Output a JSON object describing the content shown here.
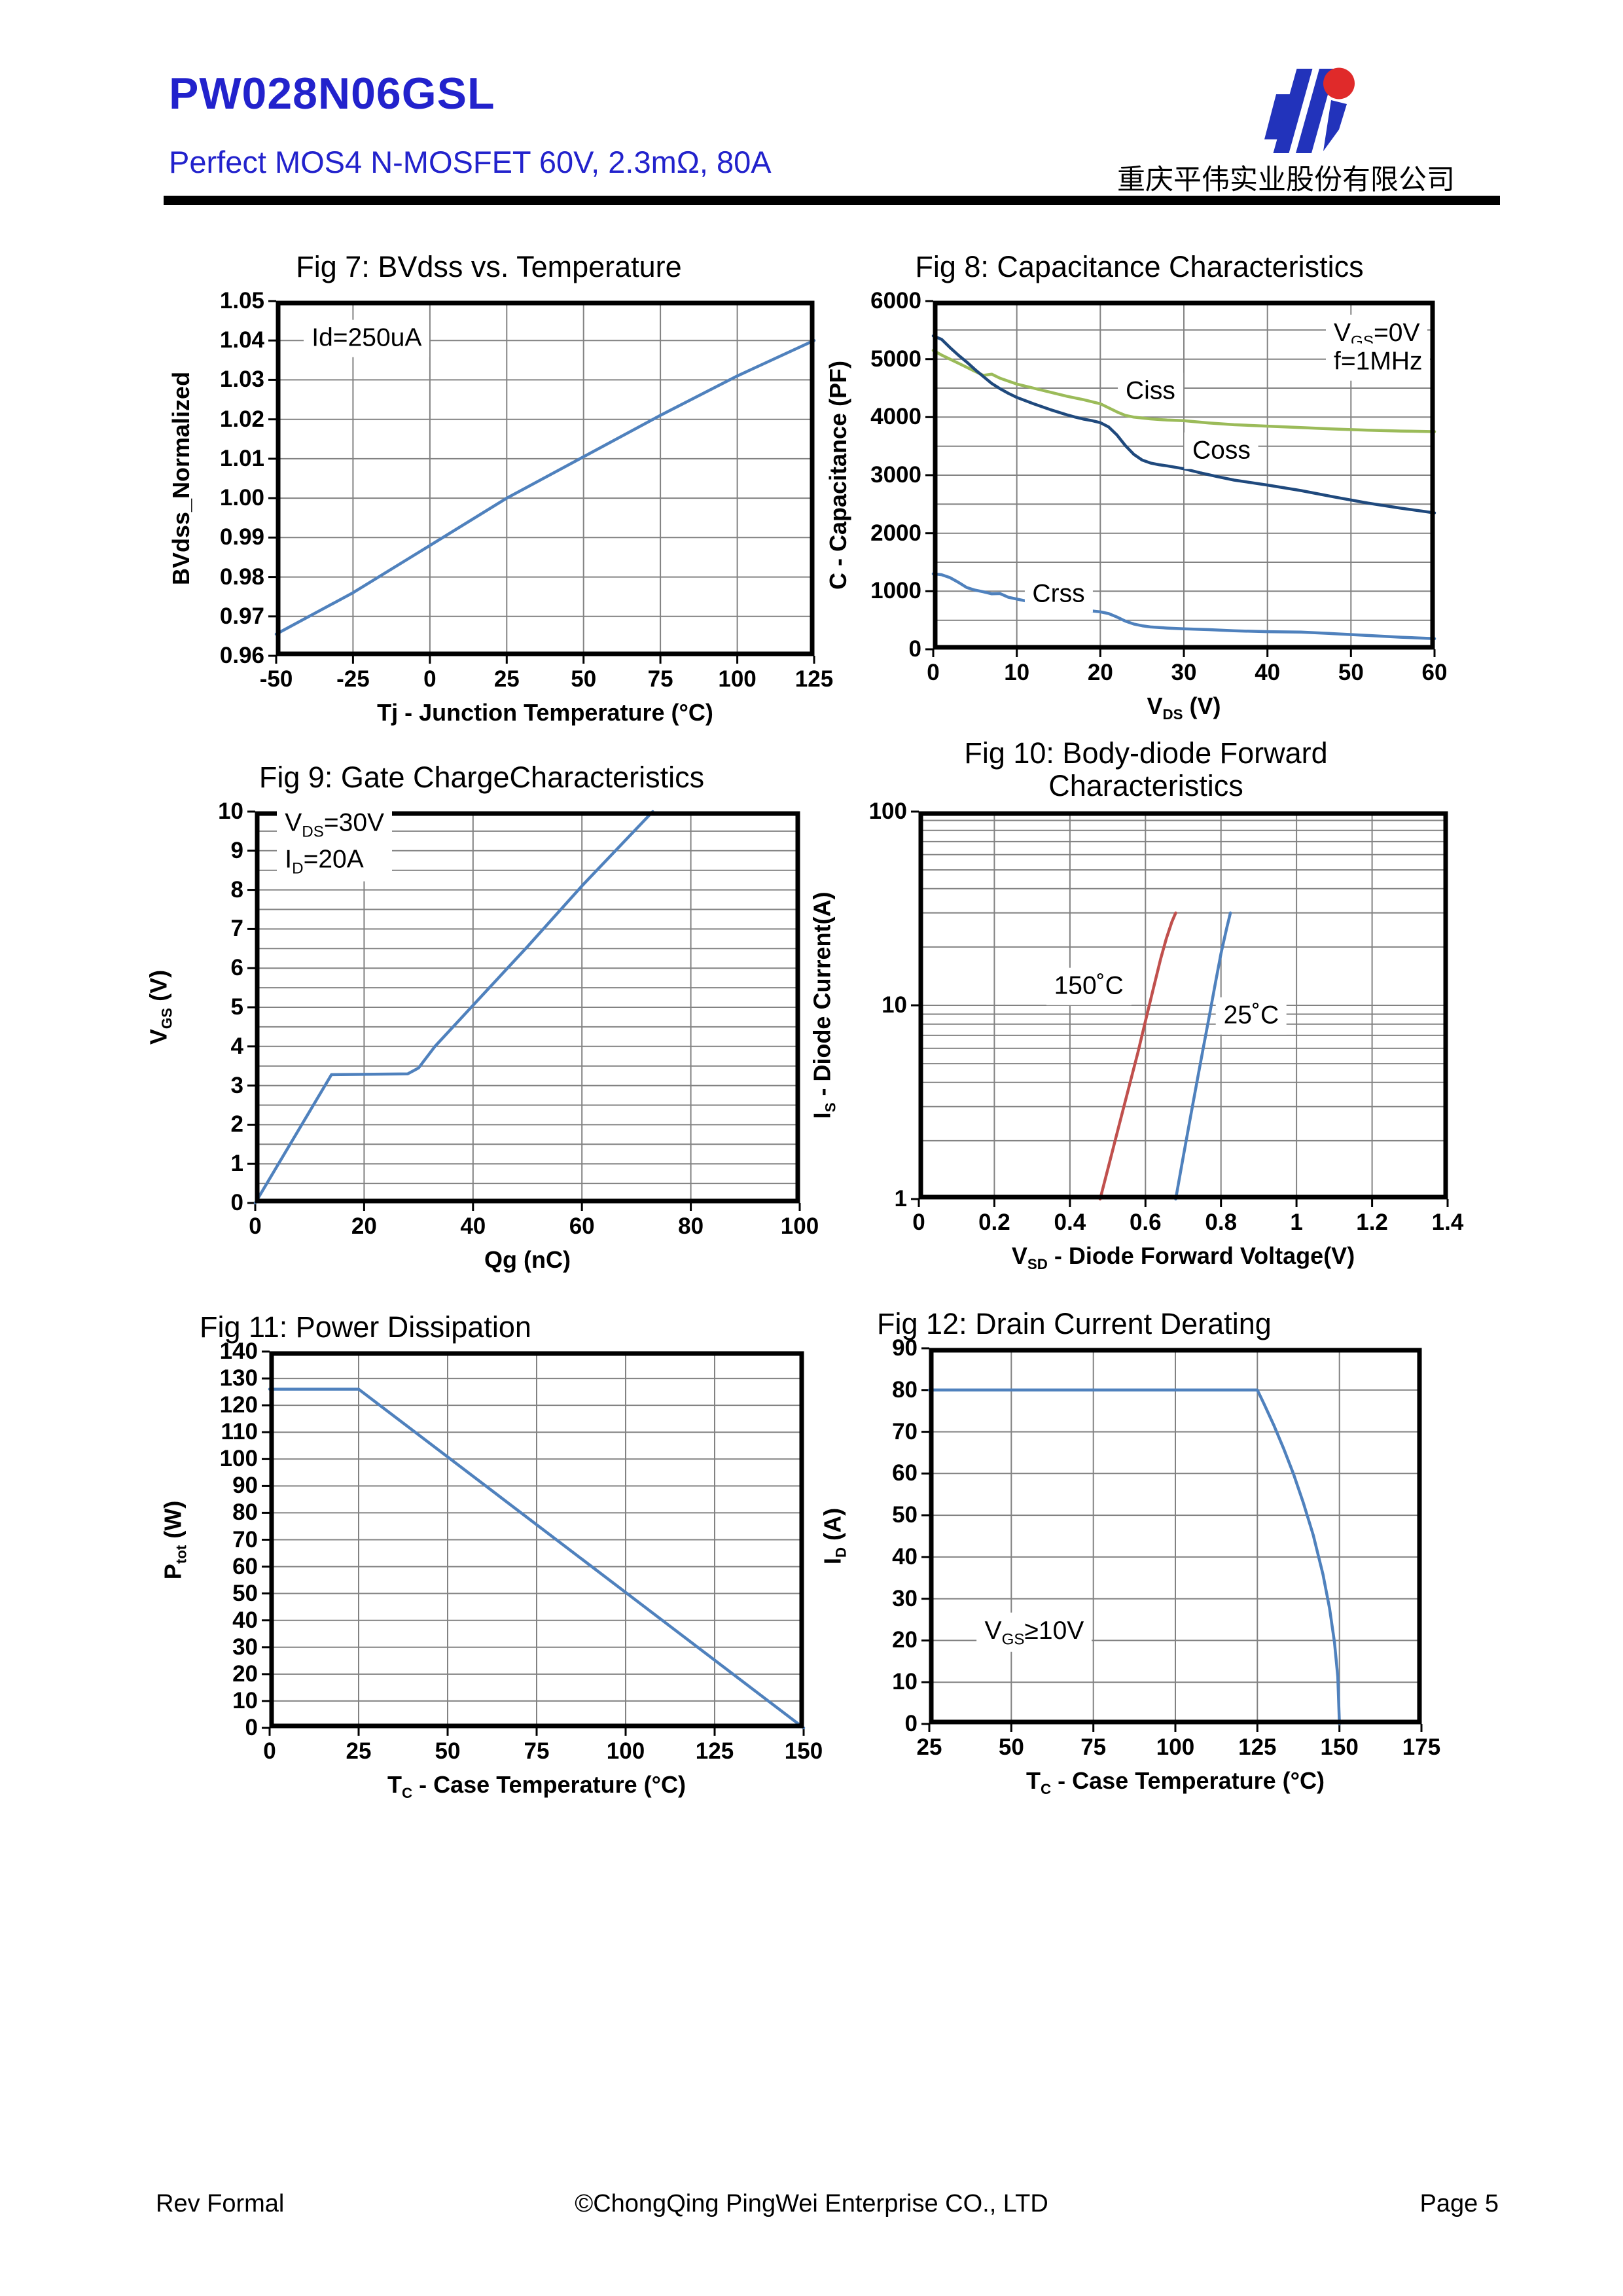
{
  "header": {
    "part_number": "PW028N06GSL",
    "subtitle": "Perfect MOS4 N-MOSFET 60V, 2.3mΩ, 80A",
    "company_cn": "重庆平伟实业股份有限公司",
    "brand_color": "#2222CC",
    "logo": {
      "blue": "#2233BB",
      "red": "#E02A2A"
    }
  },
  "footer": {
    "rev": "Rev Formal",
    "copyright": "©ChongQing PingWei Enterprise CO., LTD",
    "page": "Page 5"
  },
  "chart_style": {
    "grid": "#828282",
    "frame": "#000000"
  },
  "chart_data": [
    {
      "id": "fig7",
      "type": "line",
      "title": "Fig 7: BVdss vs. Temperature",
      "xlabel": "Tj - Junction Temperature (°C)",
      "ylabel": "BVdss_Normalized",
      "x": {
        "min": -50,
        "max": 125,
        "labelStep": 25,
        "gridStep": 25,
        "decimals": 0
      },
      "y": {
        "min": 0.96,
        "max": 1.05,
        "labelStep": 0.01,
        "gridStep": 0.01,
        "decimals": 2
      },
      "series": [
        {
          "name": "BVdss_normalized",
          "color": "#4F81BD",
          "points": [
            [
              -50,
              0.9655
            ],
            [
              -25,
              0.976
            ],
            [
              0,
              0.988
            ],
            [
              25,
              1.0
            ],
            [
              50,
              1.0105
            ],
            [
              75,
              1.021
            ],
            [
              100,
              1.031
            ],
            [
              125,
              1.04
            ]
          ]
        }
      ],
      "annotations": [
        {
          "text": "Id=250uA",
          "x": -41,
          "y": 1.0405,
          "align": "left",
          "bg": true
        }
      ]
    },
    {
      "id": "fig8",
      "type": "line",
      "title": "Fig 8: Capacitance Characteristics",
      "xlabel": "V~DS~ (V)",
      "ylabel": "C - Capacitance (PF)",
      "x": {
        "min": 0,
        "max": 60,
        "labelStep": 10,
        "gridStep": 10,
        "decimals": 0
      },
      "y": {
        "min": 0,
        "max": 6000,
        "labelStep": 1000,
        "gridStep": 500,
        "decimals": 0
      },
      "series": [
        {
          "name": "Ciss",
          "color": "#9BBB59",
          "points": [
            [
              0,
              5150
            ],
            [
              1,
              5070
            ],
            [
              2,
              5000
            ],
            [
              3,
              4930
            ],
            [
              4,
              4860
            ],
            [
              5,
              4790
            ],
            [
              6,
              4720
            ],
            [
              7,
              4740
            ],
            [
              8,
              4670
            ],
            [
              9,
              4620
            ],
            [
              10,
              4570
            ],
            [
              12,
              4500
            ],
            [
              14,
              4430
            ],
            [
              16,
              4360
            ],
            [
              18,
              4300
            ],
            [
              20,
              4230
            ],
            [
              21,
              4160
            ],
            [
              22,
              4090
            ],
            [
              23,
              4030
            ],
            [
              24,
              4000
            ],
            [
              26,
              3970
            ],
            [
              28,
              3950
            ],
            [
              30,
              3940
            ],
            [
              33,
              3900
            ],
            [
              36,
              3870
            ],
            [
              40,
              3845
            ],
            [
              44,
              3820
            ],
            [
              48,
              3795
            ],
            [
              52,
              3775
            ],
            [
              56,
              3760
            ],
            [
              60,
              3750
            ]
          ]
        },
        {
          "name": "Coss",
          "color": "#1F497D",
          "points": [
            [
              0,
              5400
            ],
            [
              1,
              5340
            ],
            [
              2,
              5200
            ],
            [
              3,
              5070
            ],
            [
              4,
              4950
            ],
            [
              5,
              4820
            ],
            [
              6,
              4700
            ],
            [
              7,
              4580
            ],
            [
              8,
              4490
            ],
            [
              9,
              4410
            ],
            [
              10,
              4340
            ],
            [
              12,
              4230
            ],
            [
              14,
              4130
            ],
            [
              16,
              4040
            ],
            [
              17,
              4000
            ],
            [
              18,
              3965
            ],
            [
              19,
              3940
            ],
            [
              20,
              3905
            ],
            [
              21,
              3830
            ],
            [
              22,
              3690
            ],
            [
              23,
              3510
            ],
            [
              24,
              3360
            ],
            [
              25,
              3260
            ],
            [
              26,
              3210
            ],
            [
              27,
              3180
            ],
            [
              28,
              3160
            ],
            [
              30,
              3110
            ],
            [
              32,
              3040
            ],
            [
              34,
              2975
            ],
            [
              36,
              2915
            ],
            [
              40,
              2830
            ],
            [
              44,
              2735
            ],
            [
              48,
              2625
            ],
            [
              52,
              2520
            ],
            [
              56,
              2430
            ],
            [
              60,
              2350
            ]
          ]
        },
        {
          "name": "Crss",
          "color": "#4F81BD",
          "points": [
            [
              0,
              1300
            ],
            [
              1,
              1285
            ],
            [
              2,
              1235
            ],
            [
              3,
              1155
            ],
            [
              4,
              1065
            ],
            [
              5,
              1020
            ],
            [
              6,
              990
            ],
            [
              7,
              955
            ],
            [
              8,
              960
            ],
            [
              9,
              895
            ],
            [
              10,
              865
            ],
            [
              12,
              805
            ],
            [
              14,
              765
            ],
            [
              16,
              715
            ],
            [
              18,
              675
            ],
            [
              20,
              645
            ],
            [
              21,
              615
            ],
            [
              22,
              555
            ],
            [
              23,
              485
            ],
            [
              24,
              435
            ],
            [
              25,
              405
            ],
            [
              26,
              385
            ],
            [
              28,
              365
            ],
            [
              30,
              352
            ],
            [
              33,
              338
            ],
            [
              36,
              318
            ],
            [
              40,
              303
            ],
            [
              44,
              295
            ],
            [
              48,
              268
            ],
            [
              52,
              238
            ],
            [
              56,
              208
            ],
            [
              60,
              183
            ]
          ]
        }
      ],
      "annotations": [
        {
          "text": "V~GS~=0V",
          "x": 47,
          "y": 5430,
          "align": "left",
          "bg": true
        },
        {
          "text": "f=1MHz",
          "x": 47,
          "y": 4950,
          "align": "left",
          "bg": true
        },
        {
          "text": "Ciss",
          "x": 26,
          "y": 4440,
          "bg": true
        },
        {
          "text": "Coss",
          "x": 34.5,
          "y": 3420,
          "bg": true
        },
        {
          "text": "Crss",
          "x": 15,
          "y": 950,
          "bg": true
        }
      ]
    },
    {
      "id": "fig9",
      "type": "line",
      "title": "Fig 9: Gate ChargeCharacteristics",
      "xlabel": "Qg (nC)",
      "ylabel": "V~GS~ (V)",
      "x": {
        "min": 0,
        "max": 100,
        "labelStep": 20,
        "gridStep": 20,
        "decimals": 0
      },
      "y": {
        "min": 0,
        "max": 10,
        "labelStep": 1,
        "gridStep": 0.5,
        "decimals": 0
      },
      "series": [
        {
          "name": "VGS",
          "color": "#4F81BD",
          "points": [
            [
              0,
              0
            ],
            [
              14,
              3.28
            ],
            [
              28,
              3.3
            ],
            [
              30,
              3.45
            ],
            [
              33,
              4.0
            ],
            [
              40,
              5.05
            ],
            [
              50,
              6.55
            ],
            [
              60,
              8.1
            ],
            [
              73,
              10
            ]
          ]
        }
      ],
      "annotations": [
        {
          "text": "V~DS~=30V\nI~D~=20A",
          "x": 4,
          "y": 9.2,
          "align": "left",
          "bg": true
        }
      ]
    },
    {
      "id": "fig10",
      "type": "line",
      "title": "Fig 10: Body-diode Forward\nCharacteristics",
      "xlabel": "V~SD~ - Diode Forward Voltage(V)",
      "ylabel": "I~S~ - Diode Current(A)",
      "x": {
        "min": 0,
        "max": 1.4,
        "labelStep": 0.2,
        "gridStep": 0.2,
        "decimals": 1,
        "trim": true
      },
      "y": {
        "min": 1,
        "max": 100,
        "scale": "log",
        "ticks": [
          1,
          10,
          100
        ],
        "decimals": 0
      },
      "series": [
        {
          "name": "150C",
          "color": "#C0504D",
          "points": [
            [
              0.48,
              1
            ],
            [
              0.505,
              1.55
            ],
            [
              0.53,
              2.4
            ],
            [
              0.555,
              3.7
            ],
            [
              0.58,
              5.7
            ],
            [
              0.6,
              8.3
            ],
            [
              0.62,
              12
            ],
            [
              0.64,
              17.3
            ],
            [
              0.655,
              22
            ],
            [
              0.67,
              27
            ],
            [
              0.68,
              30
            ]
          ]
        },
        {
          "name": "25C",
          "color": "#4F81BD",
          "points": [
            [
              0.68,
              1
            ],
            [
              0.7,
              1.65
            ],
            [
              0.72,
              2.7
            ],
            [
              0.74,
              4.4
            ],
            [
              0.755,
              6.3
            ],
            [
              0.77,
              9
            ],
            [
              0.785,
              13
            ],
            [
              0.8,
              18.5
            ],
            [
              0.815,
              25
            ],
            [
              0.825,
              30
            ]
          ]
        }
      ],
      "annotations": [
        {
          "text": "150˚C",
          "x": 0.45,
          "y": 12.5,
          "bg": true
        },
        {
          "text": "25˚C",
          "x": 0.88,
          "y": 8.8,
          "bg": true
        }
      ]
    },
    {
      "id": "fig11",
      "type": "line",
      "title": "Fig 11: Power Dissipation",
      "xlabel": "T~C~ - Case Temperature (°C)",
      "ylabel": "P~tot~ (W)",
      "x": {
        "min": 0,
        "max": 150,
        "labelStep": 25,
        "gridStep": 25,
        "decimals": 0
      },
      "y": {
        "min": 0,
        "max": 140,
        "labelStep": 10,
        "gridStep": 10,
        "decimals": 0
      },
      "series": [
        {
          "name": "Ptot",
          "color": "#4F81BD",
          "points": [
            [
              0,
              126
            ],
            [
              25,
              126
            ],
            [
              150,
              0
            ]
          ]
        }
      ],
      "annotations": []
    },
    {
      "id": "fig12",
      "type": "line",
      "title": "Fig 12: Drain Current Derating",
      "xlabel": "T~C~ - Case Temperature (°C)",
      "ylabel": "I~D~ (A)",
      "x": {
        "min": 25,
        "max": 175,
        "labelStep": 25,
        "gridStep": 25,
        "decimals": 0
      },
      "y": {
        "min": 0,
        "max": 90,
        "labelStep": 10,
        "gridStep": 10,
        "decimals": 0
      },
      "series": [
        {
          "name": "ID",
          "color": "#4F81BD",
          "points": [
            [
              25,
              80
            ],
            [
              125,
              80
            ],
            [
              127,
              76.7
            ],
            [
              130,
              71.6
            ],
            [
              133,
              66
            ],
            [
              136,
              59.9
            ],
            [
              139,
              53
            ],
            [
              142,
              45.3
            ],
            [
              145,
              35.8
            ],
            [
              147,
              27.7
            ],
            [
              148.5,
              19.6
            ],
            [
              149.5,
              11.3
            ],
            [
              150,
              0
            ]
          ]
        }
      ],
      "annotations": [
        {
          "text": "V~GS~≥10V",
          "x": 57,
          "y": 22,
          "bg": true
        }
      ]
    }
  ]
}
